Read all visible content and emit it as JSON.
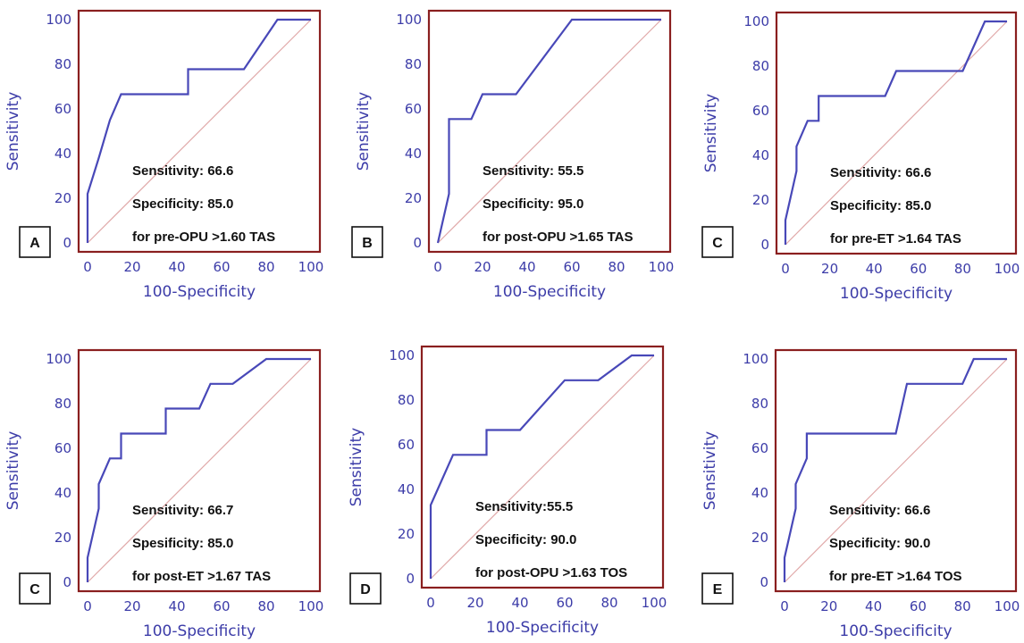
{
  "colors": {
    "frame": "#8a1f1f",
    "roc_line": "#4848b8",
    "diagonal": "#e0a8a8",
    "axis_text": "#3c3ca8",
    "label_box_border": "#111111"
  },
  "chart_data": [
    {
      "type": "line",
      "panel_label": "A",
      "xlabel": "100-Specificity",
      "ylabel": "Sensitivity",
      "xlim": [
        0,
        100
      ],
      "ylim": [
        0,
        100
      ],
      "xticks": [
        "0",
        "20",
        "40",
        "60",
        "80",
        "100"
      ],
      "yticks": [
        "0",
        "20",
        "40",
        "60",
        "80",
        "100"
      ],
      "annotations": [
        "Sensitivity: 66.6",
        "Specificity: 85.0",
        "for pre-OPU  >1.60 TAS"
      ],
      "series": [
        {
          "points": [
            [
              0,
              0
            ],
            [
              0,
              22
            ],
            [
              5,
              38
            ],
            [
              10,
              55
            ],
            [
              15,
              66.6
            ],
            [
              45,
              66.6
            ],
            [
              45,
              77.8
            ],
            [
              70,
              77.8
            ],
            [
              85,
              100
            ],
            [
              100,
              100
            ]
          ]
        }
      ],
      "reference_line": [
        [
          0,
          0
        ],
        [
          100,
          100
        ]
      ]
    },
    {
      "type": "line",
      "panel_label": "B",
      "xlabel": "100-Specificity",
      "ylabel": "Sensitivity",
      "xlim": [
        0,
        100
      ],
      "ylim": [
        0,
        100
      ],
      "xticks": [
        "0",
        "20",
        "40",
        "60",
        "80",
        "100"
      ],
      "yticks": [
        "0",
        "20",
        "40",
        "60",
        "80",
        "100"
      ],
      "annotations": [
        "Sensitivity: 55.5",
        "Specificity: 95.0",
        "for post-OPU  >1.65  TAS"
      ],
      "series": [
        {
          "points": [
            [
              0,
              0
            ],
            [
              5,
              22
            ],
            [
              5,
              55.5
            ],
            [
              15,
              55.5
            ],
            [
              20,
              66.6
            ],
            [
              35,
              66.6
            ],
            [
              60,
              100
            ],
            [
              100,
              100
            ]
          ]
        }
      ],
      "reference_line": [
        [
          0,
          0
        ],
        [
          100,
          100
        ]
      ]
    },
    {
      "type": "line",
      "panel_label": "C",
      "xlabel": "100-Specificity",
      "ylabel": "Sensitivity",
      "xlim": [
        0,
        100
      ],
      "ylim": [
        0,
        100
      ],
      "xticks": [
        "0",
        "20",
        "40",
        "60",
        "80",
        "100"
      ],
      "yticks": [
        "0",
        "20",
        "40",
        "60",
        "80",
        "100"
      ],
      "annotations": [
        "Sensitivity: 66.6",
        "Specificity: 85.0",
        "for pre-ET  >1.64 TAS"
      ],
      "series": [
        {
          "points": [
            [
              0,
              0
            ],
            [
              0,
              11
            ],
            [
              5,
              33
            ],
            [
              5,
              44
            ],
            [
              10,
              55.5
            ],
            [
              15,
              55.5
            ],
            [
              15,
              66.6
            ],
            [
              45,
              66.6
            ],
            [
              50,
              77.8
            ],
            [
              80,
              77.8
            ],
            [
              90,
              100
            ],
            [
              100,
              100
            ]
          ]
        }
      ],
      "reference_line": [
        [
          0,
          0
        ],
        [
          100,
          100
        ]
      ]
    },
    {
      "type": "line",
      "panel_label": "C",
      "xlabel": "100-Specificity",
      "ylabel": "Sensitivity",
      "xlim": [
        0,
        100
      ],
      "ylim": [
        0,
        100
      ],
      "xticks": [
        "0",
        "20",
        "40",
        "60",
        "80",
        "100"
      ],
      "yticks": [
        "0",
        "20",
        "40",
        "60",
        "80",
        "100"
      ],
      "annotations": [
        "Sensitivity: 66.7",
        "Spesificity: 85.0",
        "for post-ET >1.67 TAS"
      ],
      "series": [
        {
          "points": [
            [
              0,
              0
            ],
            [
              0,
              11
            ],
            [
              5,
              33
            ],
            [
              5,
              44
            ],
            [
              10,
              55.5
            ],
            [
              15,
              55.5
            ],
            [
              15,
              66.6
            ],
            [
              35,
              66.6
            ],
            [
              35,
              77.8
            ],
            [
              50,
              77.8
            ],
            [
              55,
              88.9
            ],
            [
              65,
              88.9
            ],
            [
              80,
              100
            ],
            [
              100,
              100
            ]
          ]
        }
      ],
      "reference_line": [
        [
          0,
          0
        ],
        [
          100,
          100
        ]
      ]
    },
    {
      "type": "line",
      "panel_label": "D",
      "xlabel": "100-Specificity",
      "ylabel": "Sensitivity",
      "xlim": [
        0,
        100
      ],
      "ylim": [
        0,
        100
      ],
      "xticks": [
        "0",
        "20",
        "40",
        "60",
        "80",
        "100"
      ],
      "yticks": [
        "0",
        "20",
        "40",
        "60",
        "80",
        "100"
      ],
      "annotations": [
        "Sensitivity:55.5",
        "Specificity: 90.0",
        "for post-OPU  >1.63  TOS"
      ],
      "series": [
        {
          "points": [
            [
              0,
              0
            ],
            [
              0,
              33
            ],
            [
              10,
              55.5
            ],
            [
              25,
              55.5
            ],
            [
              25,
              66.6
            ],
            [
              40,
              66.6
            ],
            [
              60,
              88.9
            ],
            [
              75,
              88.9
            ],
            [
              90,
              100
            ],
            [
              100,
              100
            ]
          ]
        }
      ],
      "reference_line": [
        [
          0,
          0
        ],
        [
          100,
          100
        ]
      ]
    },
    {
      "type": "line",
      "panel_label": "E",
      "xlabel": "100-Specificity",
      "ylabel": "Sensitivity",
      "xlim": [
        0,
        100
      ],
      "ylim": [
        0,
        100
      ],
      "xticks": [
        "0",
        "20",
        "40",
        "60",
        "80",
        "100"
      ],
      "yticks": [
        "0",
        "20",
        "40",
        "60",
        "80",
        "100"
      ],
      "annotations": [
        "Sensitivity: 66.6",
        "Specificity: 90.0",
        "for pre-ET  >1.64 TOS"
      ],
      "series": [
        {
          "points": [
            [
              0,
              0
            ],
            [
              0,
              11
            ],
            [
              5,
              33
            ],
            [
              5,
              44
            ],
            [
              10,
              55.5
            ],
            [
              10,
              66.6
            ],
            [
              50,
              66.6
            ],
            [
              55,
              88.9
            ],
            [
              80,
              88.9
            ],
            [
              85,
              100
            ],
            [
              100,
              100
            ]
          ]
        }
      ],
      "reference_line": [
        [
          0,
          0
        ],
        [
          100,
          100
        ]
      ]
    }
  ]
}
